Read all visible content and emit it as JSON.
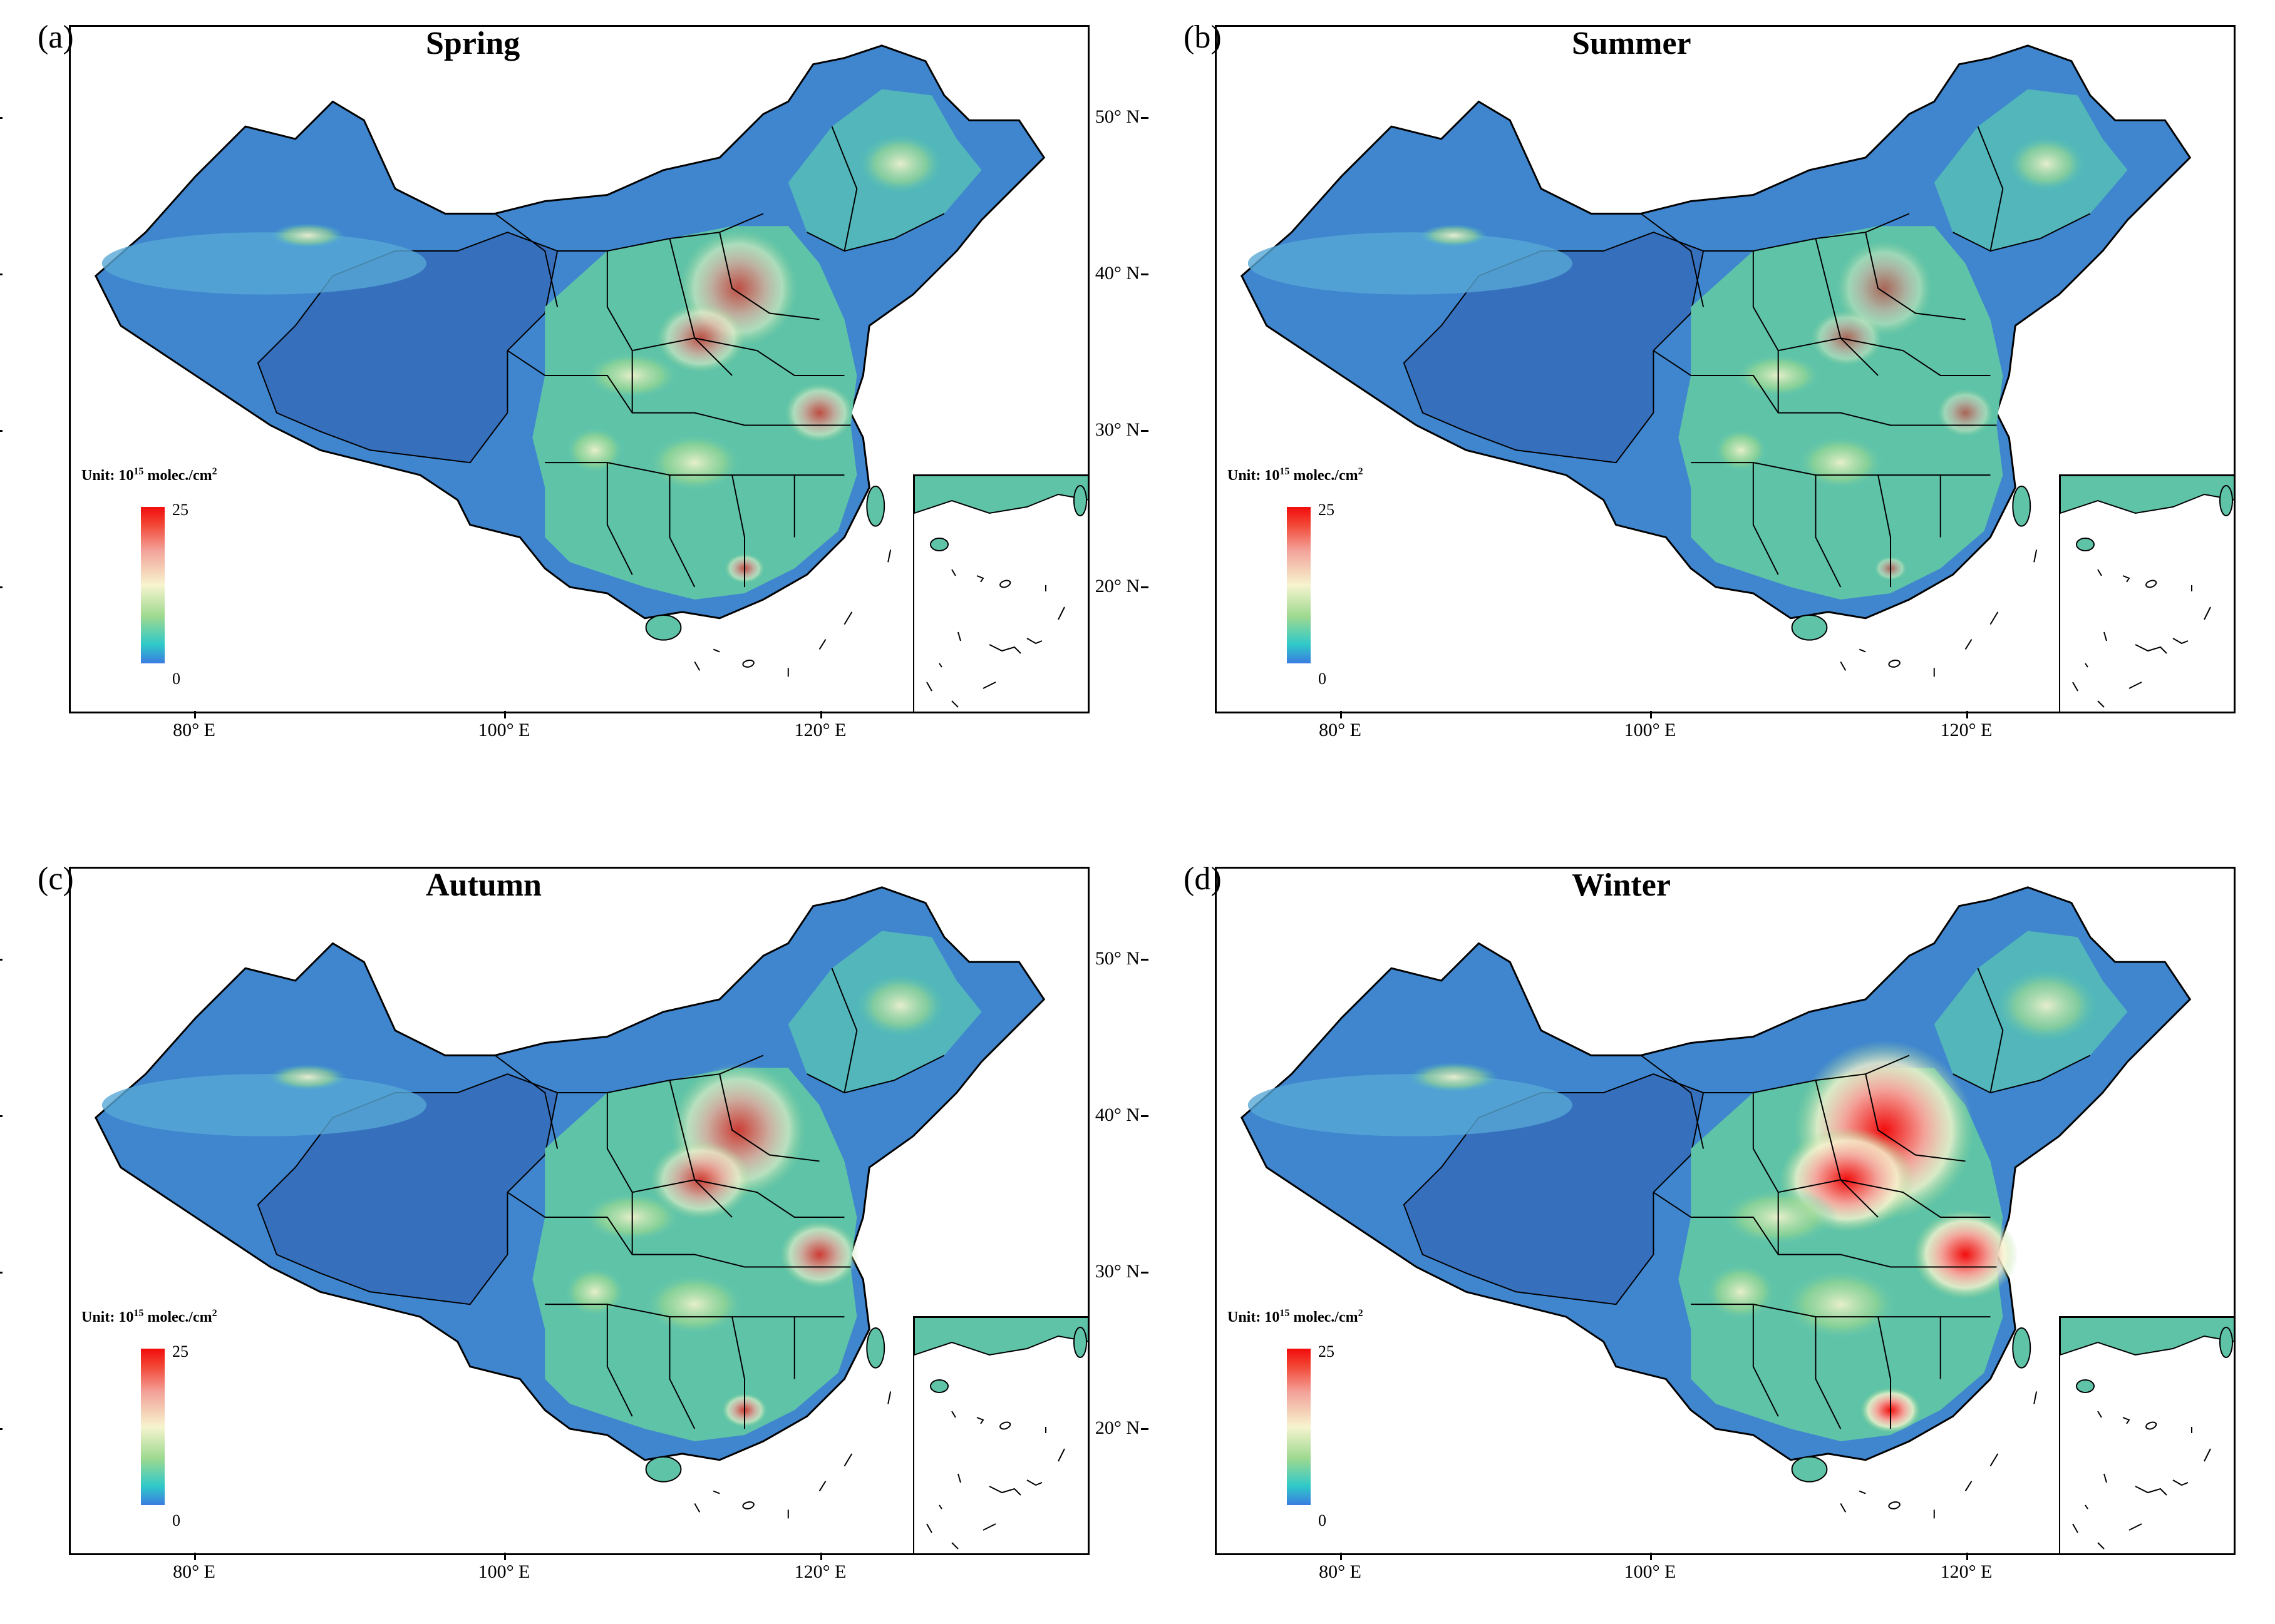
{
  "axes": {
    "lat_ticks": [
      "50° N",
      "40° N",
      "30° N",
      "20° N"
    ],
    "lon_ticks": [
      "80° E",
      "100° E",
      "120° E"
    ]
  },
  "legend": {
    "unit_prefix": "Unit: 10",
    "unit_exp": "15",
    "unit_suffix": " molec./cm",
    "unit_sq": "2",
    "max": "25",
    "min": "0",
    "colors": [
      "#3a7be0",
      "#2fc9c9",
      "#9ed98f",
      "#f6f4cf",
      "#f3a39a",
      "#f2402f",
      "#f20d0d"
    ]
  },
  "panels": [
    {
      "letter": "(a)",
      "title": "Spring",
      "intensity": 0.45
    },
    {
      "letter": "(b)",
      "title": "Summer",
      "intensity": 0.25
    },
    {
      "letter": "(c)",
      "title": "Autumn",
      "intensity": 0.6
    },
    {
      "letter": "(d)",
      "title": "Winter",
      "intensity": 1.0
    }
  ]
}
